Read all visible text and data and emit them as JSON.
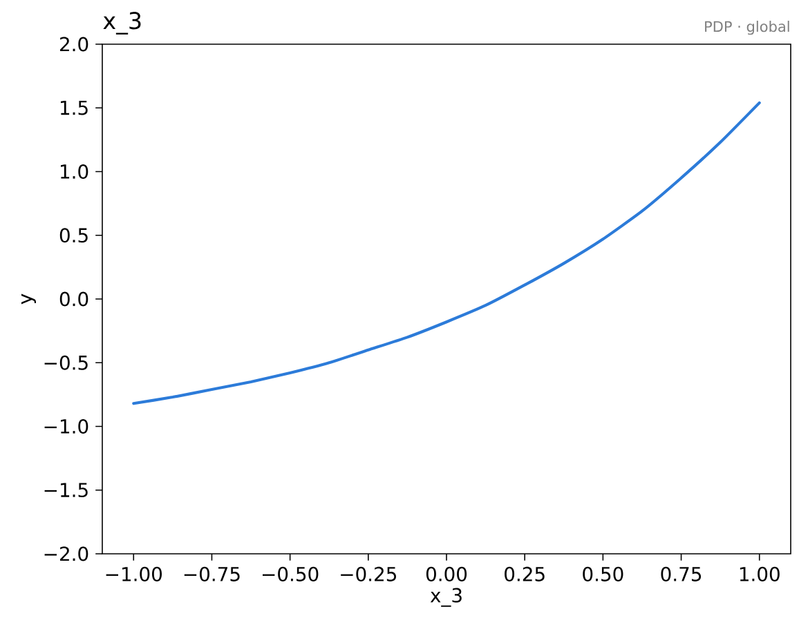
{
  "chart_data": {
    "type": "line",
    "title": "x_3",
    "subtitle": "PDP · global",
    "xlabel": "x_3",
    "ylabel": "y",
    "x": [
      -1.0,
      -0.875,
      -0.75,
      -0.625,
      -0.5,
      -0.375,
      -0.25,
      -0.125,
      0.0,
      0.125,
      0.25,
      0.375,
      0.5,
      0.625,
      0.75,
      0.875,
      1.0
    ],
    "values": [
      -0.82,
      -0.77,
      -0.71,
      -0.65,
      -0.58,
      -0.5,
      -0.4,
      -0.3,
      -0.18,
      -0.05,
      0.11,
      0.28,
      0.47,
      0.69,
      0.95,
      1.23,
      1.54
    ],
    "color": "#2c7bd9",
    "xlim": [
      -1.1,
      1.1
    ],
    "xticks": [
      {
        "value": -1.0,
        "label": "−1.00"
      },
      {
        "value": -0.75,
        "label": "−0.75"
      },
      {
        "value": -0.5,
        "label": "−0.50"
      },
      {
        "value": -0.25,
        "label": "−0.25"
      },
      {
        "value": 0.0,
        "label": "0.00"
      },
      {
        "value": 0.25,
        "label": "0.25"
      },
      {
        "value": 0.5,
        "label": "0.50"
      },
      {
        "value": 0.75,
        "label": "0.75"
      },
      {
        "value": 1.0,
        "label": "1.00"
      }
    ],
    "ylim": [
      -2.0,
      2.0
    ],
    "yticks": [
      {
        "value": -2.0,
        "label": "−2.0"
      },
      {
        "value": -1.5,
        "label": "−1.5"
      },
      {
        "value": -1.0,
        "label": "−1.0"
      },
      {
        "value": -0.5,
        "label": "−0.5"
      },
      {
        "value": 0.0,
        "label": "0.0"
      },
      {
        "value": 0.5,
        "label": "0.5"
      },
      {
        "value": 1.0,
        "label": "1.0"
      },
      {
        "value": 1.5,
        "label": "1.5"
      },
      {
        "value": 2.0,
        "label": "2.0"
      }
    ]
  }
}
